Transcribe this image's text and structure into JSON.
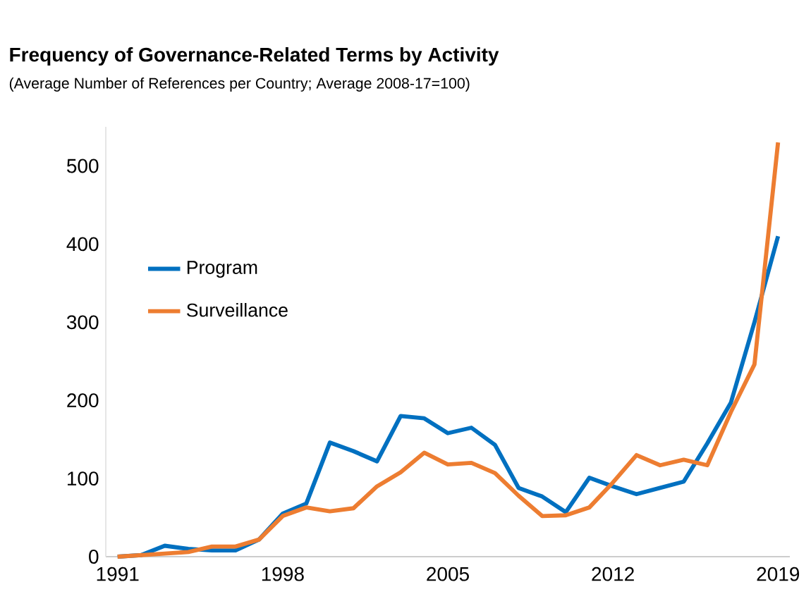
{
  "chart_data": {
    "type": "line",
    "title": "Frequency of Governance-Related Terms by Activity",
    "subtitle": "(Average Number of References per Country; Average 2008-17=100)",
    "x": [
      1991,
      1992,
      1993,
      1994,
      1995,
      1996,
      1997,
      1998,
      1999,
      2000,
      2001,
      2002,
      2003,
      2004,
      2005,
      2006,
      2007,
      2008,
      2009,
      2010,
      2011,
      2012,
      2013,
      2014,
      2015,
      2016,
      2017,
      2018,
      2019
    ],
    "series": [
      {
        "name": "Program",
        "color": "#0070c0",
        "values": [
          0,
          2,
          14,
          10,
          8,
          8,
          22,
          55,
          68,
          146,
          135,
          122,
          180,
          177,
          158,
          165,
          143,
          88,
          77,
          57,
          101,
          90,
          80,
          88,
          96,
          145,
          197,
          300,
          410
        ]
      },
      {
        "name": "Surveillance",
        "color": "#ed7d31",
        "values": [
          0,
          2,
          4,
          6,
          13,
          13,
          22,
          52,
          63,
          58,
          62,
          90,
          108,
          133,
          118,
          120,
          107,
          78,
          52,
          53,
          63,
          95,
          130,
          117,
          124,
          117,
          185,
          246,
          530
        ]
      }
    ],
    "xlim": [
      1990.5,
      2019.5
    ],
    "ylim": [
      0,
      550
    ],
    "xticks": [
      1991,
      1998,
      2005,
      2012,
      2019
    ],
    "yticks": [
      0,
      100,
      200,
      300,
      400,
      500
    ],
    "grid": false,
    "legend": "center left",
    "marker": "none",
    "line_style": "solid"
  }
}
